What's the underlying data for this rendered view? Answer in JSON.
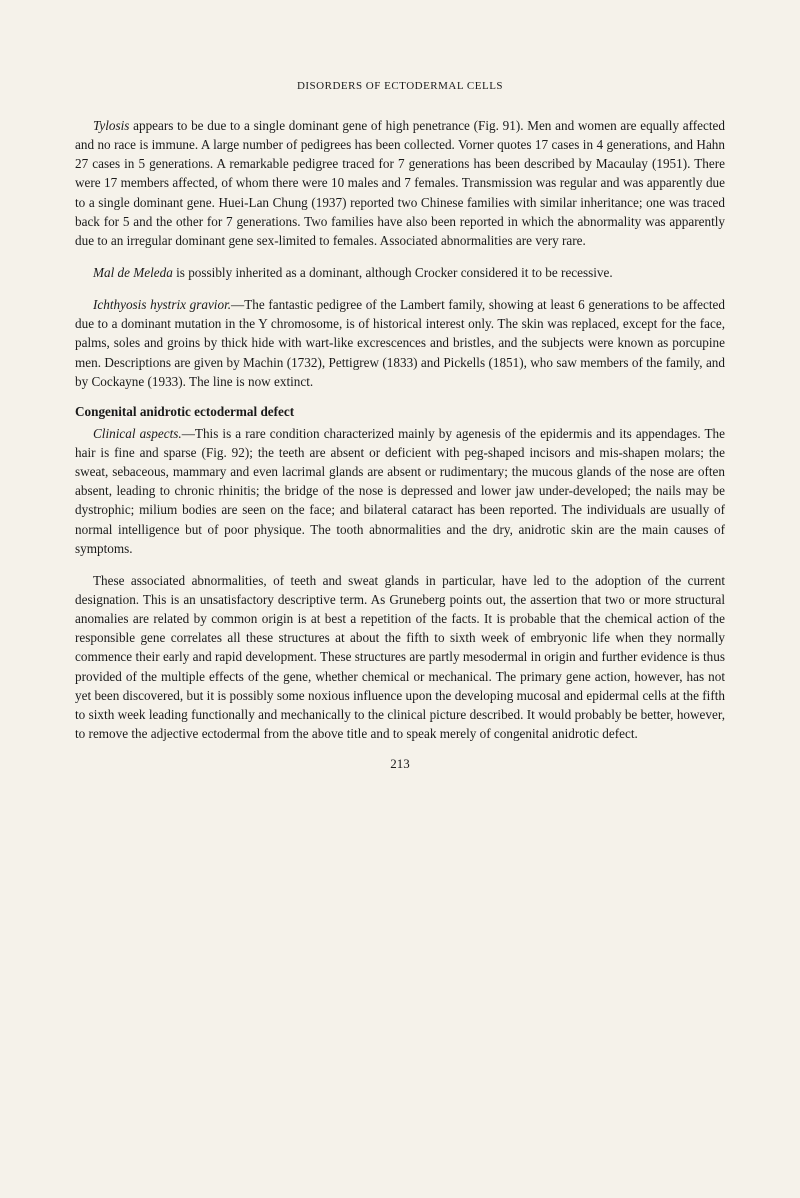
{
  "header": "DISORDERS OF ECTODERMAL CELLS",
  "paragraphs": {
    "p1_italic": "Tylosis",
    "p1_text": " appears to be due to a single dominant gene of high penetrance (Fig. 91). Men and women are equally affected and no race is immune. A large number of pedigrees has been collected. Vorner quotes 17 cases in 4 generations, and Hahn 27 cases in 5 generations. A remarkable pedigree traced for 7 generations has been described by Macaulay (1951). There were 17 members affected, of whom there were 10 males and 7 females. Transmission was regular and was apparently due to a single dominant gene. Huei-Lan Chung (1937) reported two Chinese families with similar inheritance; one was traced back for 5 and the other for 7 generations. Two families have also been reported in which the abnormality was apparently due to an irregular dominant gene sex-limited to females. Associated abnormalities are very rare.",
    "p2_italic": "Mal de Meleda",
    "p2_text": " is possibly inherited as a dominant, although Crocker considered it to be recessive.",
    "p3_italic": "Ichthyosis hystrix gravior.",
    "p3_text": "—The fantastic pedigree of the Lambert family, showing at least 6 generations to be affected due to a dominant mutation in the Y chromosome, is of historical interest only. The skin was replaced, except for the face, palms, soles and groins by thick hide with wart-like excrescences and bristles, and the subjects were known as porcupine men. Descriptions are given by Machin (1732), Pettigrew (1833) and Pickells (1851), who saw members of the family, and by Cockayne (1933). The line is now extinct.",
    "section_heading": "Congenital anidrotic ectodermal defect",
    "p4_italic": "Clinical aspects.",
    "p4_text": "—This is a rare condition characterized mainly by agenesis of the epidermis and its appendages. The hair is fine and sparse (Fig. 92); the teeth are absent or deficient with peg-shaped incisors and mis-shapen molars; the sweat, sebaceous, mammary and even lacrimal glands are absent or rudimentary; the mucous glands of the nose are often absent, leading to chronic rhinitis; the bridge of the nose is depressed and lower jaw under-developed; the nails may be dystrophic; milium bodies are seen on the face; and bilateral cataract has been reported. The individuals are usually of normal intelligence but of poor physique. The tooth abnormalities and the dry, anidrotic skin are the main causes of symptoms.",
    "p5_text": "These associated abnormalities, of teeth and sweat glands in particular, have led to the adoption of the current designation. This is an unsatisfactory descriptive term. As Gruneberg points out, the assertion that two or more structural anomalies are related by common origin is at best a repetition of the facts. It is probable that the chemical action of the responsible gene correlates all these structures at about the fifth to sixth week of embryonic life when they normally commence their early and rapid development. These structures are partly mesodermal in origin and further evidence is thus provided of the multiple effects of the gene, whether chemical or mechanical. The primary gene action, however, has not yet been discovered, but it is possibly some noxious influence upon the developing mucosal and epidermal cells at the fifth to sixth week leading functionally and mechanically to the clinical picture described. It would probably be better, however, to remove the adjective ectodermal from the above title and to speak merely of congenital anidrotic defect."
  },
  "page_number": "213"
}
